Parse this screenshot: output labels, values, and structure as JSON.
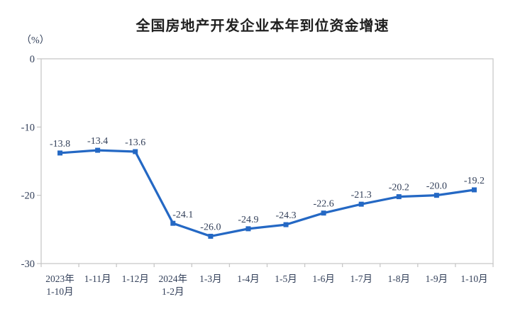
{
  "page": {
    "background": "#ffffff"
  },
  "chart_data": {
    "type": "line",
    "title": "全国房地产开发企业本年到位资金增速",
    "unit_label": "（%）",
    "categories": [
      [
        "2023年",
        "1-10月"
      ],
      [
        "1-11月"
      ],
      [
        "1-12月"
      ],
      [
        "2024年",
        "1-2月"
      ],
      [
        "1-3月"
      ],
      [
        "1-4月"
      ],
      [
        "1-5月"
      ],
      [
        "1-6月"
      ],
      [
        "1-7月"
      ],
      [
        "1-8月"
      ],
      [
        "1-9月"
      ],
      [
        "1-10月"
      ]
    ],
    "values": [
      -13.8,
      -13.4,
      -13.6,
      -24.1,
      -26.0,
      -24.9,
      -24.3,
      -22.6,
      -21.3,
      -20.2,
      -20.0,
      -19.2
    ],
    "data_labels": [
      "-13.8",
      "-13.4",
      "-13.6",
      "-24.1",
      "-26.0",
      "-24.9",
      "-24.3",
      "-22.6",
      "-21.3",
      "-20.2",
      "-20.0",
      "-19.2"
    ],
    "ylim": [
      -30,
      0
    ],
    "y_ticks": [
      0,
      -10,
      -20,
      -30
    ],
    "y_tick_labels": [
      "0",
      "-10",
      "-20",
      "-30"
    ],
    "grid": false,
    "legend": "none",
    "marker": "square",
    "colors": {
      "line": "#2468c4",
      "labels": "#33405a",
      "axis": "#c8c8c8",
      "title": "#1f1f1f"
    },
    "label_offsets": {
      "3": [
        14,
        1
      ]
    }
  }
}
